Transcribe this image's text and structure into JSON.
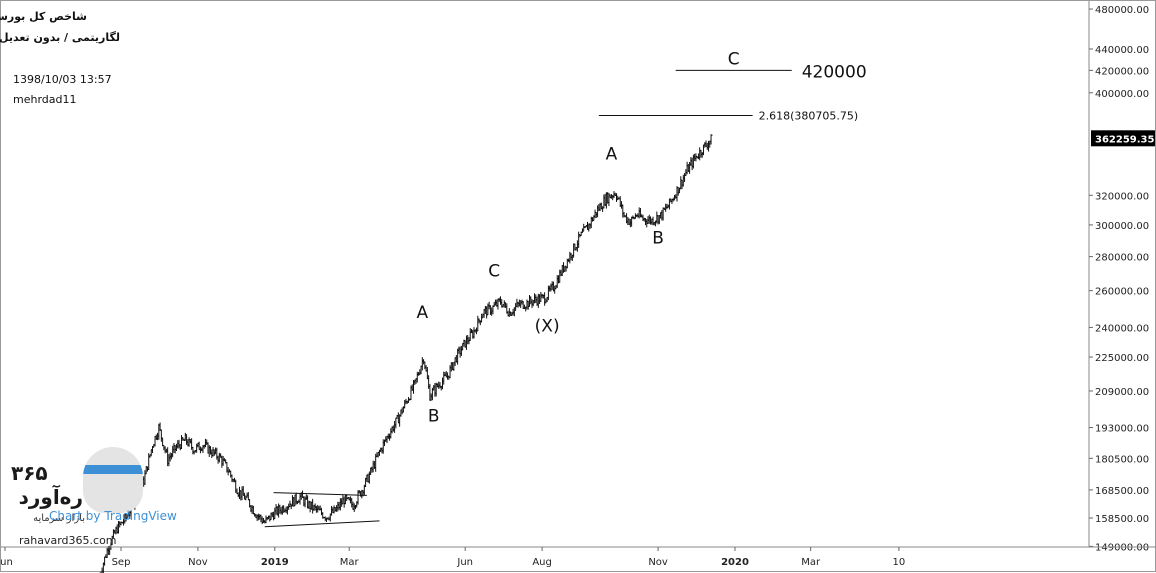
{
  "header": {
    "title": "شاخص کل بورس",
    "scale_info": "لگاریتمی / بدون تعدیل /",
    "datetime": "1398/10/03 13:57",
    "author": "mehrdad11"
  },
  "colors": {
    "text": "#111111",
    "axis": "#555555",
    "price_tag_bg": "#000000",
    "price_tag_text": "#ffffff",
    "watermark_blue": "#3d8fd6"
  },
  "watermark": {
    "brand_fa": "ره‌آورد",
    "brand_number": "۳۶۵",
    "brand_sub": "بازار سرمایه",
    "site": "rahavard365.com",
    "tv_text": "Chart by TradingView"
  },
  "chart_data": {
    "type": "ohlc",
    "y_scale": "log",
    "ylim": [
      140000,
      480000
    ],
    "y_ticks": [
      "480000.00",
      "440000.00",
      "420000.00",
      "400000.00",
      "320000.00",
      "300000.00",
      "280000.00",
      "260000.00",
      "240000.00",
      "225000.00",
      "209000.00",
      "193000.00",
      "180500.00",
      "168500.00",
      "158500.00",
      "149000.00"
    ],
    "y_tick_values": [
      480000,
      440000,
      420000,
      400000,
      320000,
      300000,
      280000,
      260000,
      240000,
      225000,
      209000,
      193000,
      180500,
      168500,
      158500,
      149000
    ],
    "x_ticks": [
      "Jun",
      "Sep",
      "Nov",
      "2019",
      "Mar",
      "Jun",
      "Aug",
      "Nov",
      "2020",
      "Mar",
      "10"
    ],
    "x_tick_bold": [
      "2019",
      "2020"
    ],
    "last_price": "362259.35",
    "last_value": 362259.35,
    "anchors": [
      {
        "d": "2018-08-15",
        "v": 140000
      },
      {
        "d": "2018-08-22",
        "v": 149000
      },
      {
        "d": "2018-08-29",
        "v": 155000
      },
      {
        "d": "2018-09-05",
        "v": 158500
      },
      {
        "d": "2018-09-12",
        "v": 165000
      },
      {
        "d": "2018-09-19",
        "v": 172000
      },
      {
        "d": "2018-09-26",
        "v": 186000
      },
      {
        "d": "2018-10-01",
        "v": 193000
      },
      {
        "d": "2018-10-08",
        "v": 180000
      },
      {
        "d": "2018-10-15",
        "v": 185000
      },
      {
        "d": "2018-10-22",
        "v": 188000
      },
      {
        "d": "2018-10-29",
        "v": 184000
      },
      {
        "d": "2018-11-05",
        "v": 186000
      },
      {
        "d": "2018-11-12",
        "v": 183000
      },
      {
        "d": "2018-11-19",
        "v": 180500
      },
      {
        "d": "2018-11-26",
        "v": 175000
      },
      {
        "d": "2018-12-03",
        "v": 168000
      },
      {
        "d": "2018-12-10",
        "v": 165000
      },
      {
        "d": "2018-12-17",
        "v": 160000
      },
      {
        "d": "2018-12-24",
        "v": 157000
      },
      {
        "d": "2018-12-31",
        "v": 160000
      },
      {
        "d": "2019-01-07",
        "v": 162000
      },
      {
        "d": "2019-01-14",
        "v": 164000
      },
      {
        "d": "2019-01-21",
        "v": 166000
      },
      {
        "d": "2019-01-28",
        "v": 163000
      },
      {
        "d": "2019-02-04",
        "v": 161000
      },
      {
        "d": "2019-02-11",
        "v": 159000
      },
      {
        "d": "2019-02-18",
        "v": 161000
      },
      {
        "d": "2019-02-25",
        "v": 165000
      },
      {
        "d": "2019-03-04",
        "v": 163000
      },
      {
        "d": "2019-03-11",
        "v": 168500
      },
      {
        "d": "2019-03-18",
        "v": 175000
      },
      {
        "d": "2019-03-25",
        "v": 183000
      },
      {
        "d": "2019-04-01",
        "v": 190000
      },
      {
        "d": "2019-04-08",
        "v": 196000
      },
      {
        "d": "2019-04-15",
        "v": 204000
      },
      {
        "d": "2019-04-22",
        "v": 212000
      },
      {
        "d": "2019-04-29",
        "v": 225000
      },
      {
        "d": "2019-05-04",
        "v": 207000
      },
      {
        "d": "2019-05-11",
        "v": 212000
      },
      {
        "d": "2019-05-18",
        "v": 216000
      },
      {
        "d": "2019-05-25",
        "v": 225000
      },
      {
        "d": "2019-06-01",
        "v": 232000
      },
      {
        "d": "2019-06-08",
        "v": 238000
      },
      {
        "d": "2019-06-15",
        "v": 248000
      },
      {
        "d": "2019-06-22",
        "v": 250000
      },
      {
        "d": "2019-06-29",
        "v": 254000
      },
      {
        "d": "2019-07-06",
        "v": 248000
      },
      {
        "d": "2019-07-13",
        "v": 252000
      },
      {
        "d": "2019-07-20",
        "v": 253000
      },
      {
        "d": "2019-07-27",
        "v": 255000
      },
      {
        "d": "2019-08-03",
        "v": 256000
      },
      {
        "d": "2019-08-10",
        "v": 262000
      },
      {
        "d": "2019-08-17",
        "v": 272000
      },
      {
        "d": "2019-08-24",
        "v": 282000
      },
      {
        "d": "2019-08-31",
        "v": 292000
      },
      {
        "d": "2019-09-07",
        "v": 300000
      },
      {
        "d": "2019-09-14",
        "v": 310000
      },
      {
        "d": "2019-09-21",
        "v": 318000
      },
      {
        "d": "2019-09-28",
        "v": 322000
      },
      {
        "d": "2019-10-01",
        "v": 316000
      },
      {
        "d": "2019-10-05",
        "v": 306000
      },
      {
        "d": "2019-10-10",
        "v": 302000
      },
      {
        "d": "2019-10-15",
        "v": 307000
      },
      {
        "d": "2019-10-20",
        "v": 304000
      },
      {
        "d": "2019-10-27",
        "v": 303000
      },
      {
        "d": "2019-11-03",
        "v": 306000
      },
      {
        "d": "2019-11-10",
        "v": 314000
      },
      {
        "d": "2019-11-17",
        "v": 325000
      },
      {
        "d": "2019-11-24",
        "v": 338000
      },
      {
        "d": "2019-12-01",
        "v": 348000
      },
      {
        "d": "2019-12-08",
        "v": 356000
      },
      {
        "d": "2019-12-14",
        "v": 362259
      }
    ],
    "annotations": [
      {
        "text": "A",
        "d": "2019-04-28",
        "v": 245000
      },
      {
        "text": "B",
        "d": "2019-05-07",
        "v": 195500
      },
      {
        "text": "C",
        "d": "2019-06-24",
        "v": 268000
      },
      {
        "text": "(X)",
        "d": "2019-08-05",
        "v": 238000
      },
      {
        "text": "A",
        "d": "2019-09-25",
        "v": 346000
      },
      {
        "text": "B",
        "d": "2019-11-01",
        "v": 288000
      }
    ],
    "levels": [
      {
        "label": "C",
        "value_label": "420000",
        "value": 420000,
        "d0": "2019-11-15",
        "d1": "2020-02-15"
      },
      {
        "label": "",
        "value_label": "2.618(380705.75)",
        "value": 380705.75,
        "d0": "2019-09-15",
        "d1": "2020-01-15"
      }
    ],
    "channel": [
      {
        "d0": "2018-12-31",
        "v0": 167500,
        "d1": "2019-03-15",
        "v1": 166500
      },
      {
        "d0": "2018-12-24",
        "v0": 155500,
        "d1": "2019-03-25",
        "v1": 157500
      }
    ]
  }
}
